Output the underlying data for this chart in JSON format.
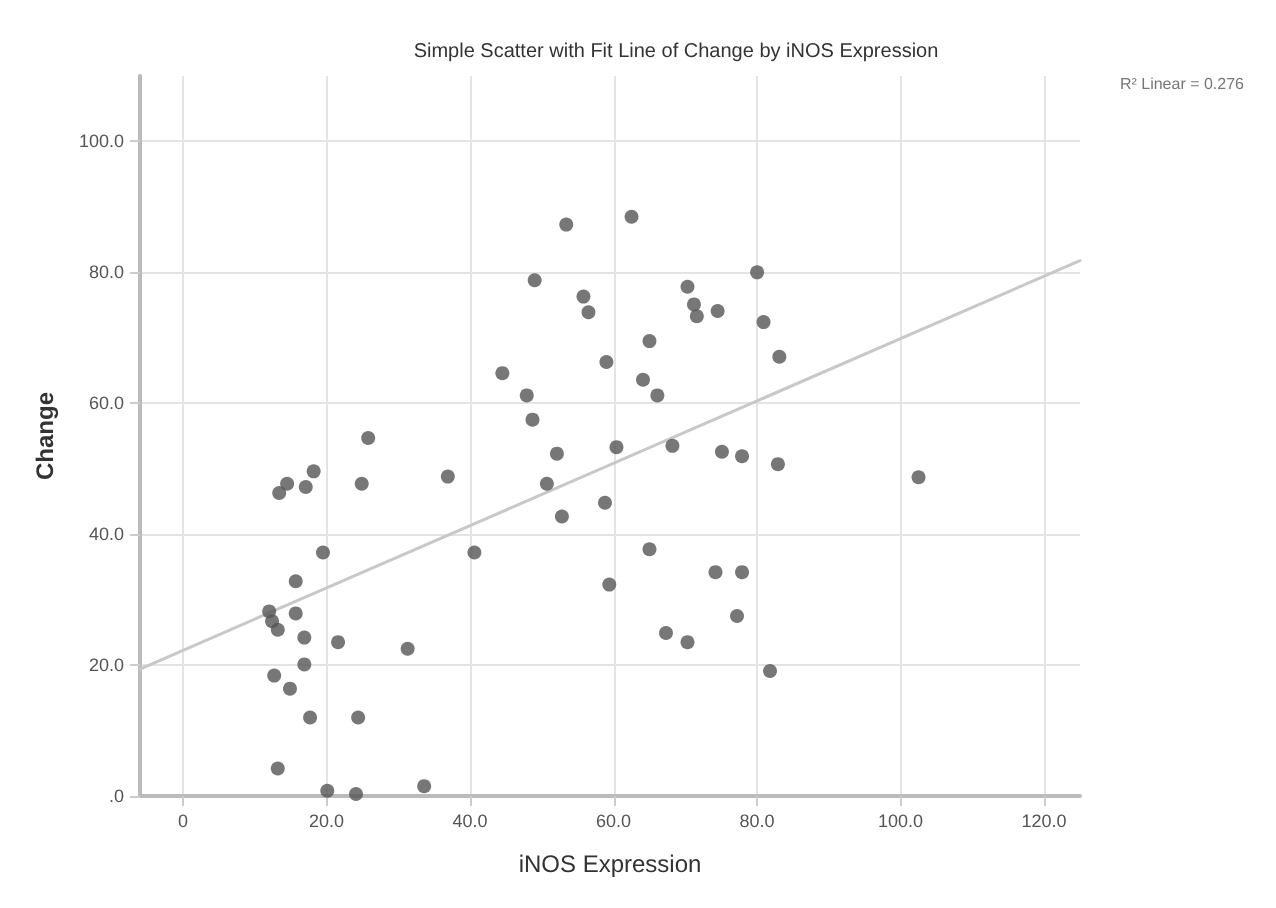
{
  "chart_data": {
    "type": "scatter",
    "title": "Simple Scatter with Fit Line of Change by iNOS Expression",
    "xlabel": "iNOS Expression",
    "ylabel": "Change",
    "annotations": [
      "R² Linear = 0.276"
    ],
    "xlim": [
      -6,
      125
    ],
    "ylim": [
      0,
      110
    ],
    "xticks": [
      {
        "value": 0,
        "label": "0"
      },
      {
        "value": 20,
        "label": "20.0"
      },
      {
        "value": 40,
        "label": "40.0"
      },
      {
        "value": 60,
        "label": "60.0"
      },
      {
        "value": 80,
        "label": "80.0"
      },
      {
        "value": 100,
        "label": "100.0"
      },
      {
        "value": 120,
        "label": "120.0"
      }
    ],
    "yticks": [
      {
        "value": 0,
        "label": ".0"
      },
      {
        "value": 20,
        "label": "20.0"
      },
      {
        "value": 40,
        "label": "40.0"
      },
      {
        "value": 60,
        "label": "60.0"
      },
      {
        "value": 80,
        "label": "80.0"
      },
      {
        "value": 100,
        "label": "100.0"
      }
    ],
    "grid": true,
    "marker": "circle",
    "series": [
      {
        "color": "#555555",
        "x": [
          53.4,
          62.5,
          49.0,
          55.8,
          56.5,
          70.3,
          71.2,
          71.6,
          65.0,
          59.0,
          44.5,
          64.1,
          47.9,
          66.1,
          48.7,
          25.8,
          68.2,
          60.4,
          52.1,
          18.2,
          36.9,
          14.5,
          13.4,
          17.1,
          24.9,
          50.7,
          58.8,
          52.8,
          19.5,
          40.6,
          65.0,
          15.7,
          59.4,
          12.0,
          12.4,
          13.2,
          15.7,
          16.9,
          21.6,
          31.3,
          67.3,
          70.3,
          12.7,
          16.9,
          14.9,
          17.7,
          24.4,
          13.2,
          20.1,
          24.1,
          33.6,
          74.5,
          80.0,
          80.9,
          83.1,
          75.1,
          77.9,
          82.9,
          102.5,
          74.2,
          77.9,
          77.2,
          81.8
        ],
        "values": [
          87.3,
          88.5,
          78.8,
          76.3,
          73.9,
          77.8,
          75.1,
          73.3,
          69.5,
          66.3,
          64.6,
          63.6,
          61.2,
          61.2,
          57.5,
          54.7,
          53.5,
          53.3,
          52.3,
          49.6,
          48.8,
          47.7,
          46.3,
          47.2,
          47.7,
          47.7,
          44.8,
          42.7,
          37.2,
          37.2,
          37.7,
          32.8,
          32.3,
          28.2,
          26.7,
          25.4,
          27.9,
          24.2,
          23.5,
          22.5,
          24.9,
          23.5,
          18.4,
          20.1,
          16.4,
          12.0,
          12.0,
          4.2,
          0.8,
          0.3,
          1.5,
          74.1,
          80.0,
          72.4,
          67.1,
          52.6,
          51.9,
          50.7,
          48.7,
          34.2,
          34.2,
          27.5,
          19.1
        ]
      },
      {
        "type": "line",
        "color": "#c8c8c8",
        "marker": "none",
        "x": [
          -6,
          125
        ],
        "values": [
          19.4,
          81.8
        ]
      }
    ]
  }
}
